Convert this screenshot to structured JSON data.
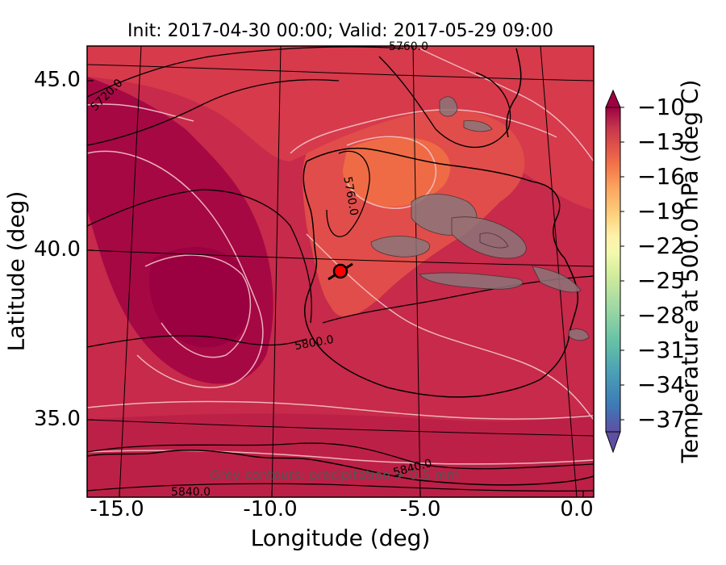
{
  "title": "Init: 2017-04-30 00:00; Valid: 2017-05-29 09:00",
  "axes": {
    "xlabel": "Longitude (deg)",
    "ylabel": "Latitude (deg)",
    "x_ticks": [
      "-15.0",
      "-10.0",
      "-5.0",
      "0.0"
    ],
    "y_ticks": [
      "45.0",
      "40.0",
      "35.0"
    ],
    "x_range_deg": [
      -15.9,
      0.3
    ],
    "y_range_deg": [
      32.9,
      46.0
    ]
  },
  "colorbar": {
    "label": "Temperature at 500.0 hPa (deg C)",
    "ticks": [
      "−10",
      "−13",
      "−16",
      "−19",
      "−22",
      "−25",
      "−28",
      "−31",
      "−34",
      "−37"
    ],
    "range": [
      -38.5,
      -8.5
    ],
    "extend": "both",
    "colormap": "Spectral_r",
    "colors": [
      "#5e4fa2",
      "#3d79b6",
      "#4a9eb6",
      "#66c2a5",
      "#9dd7a4",
      "#d0ec9b",
      "#f2f9ad",
      "#fef2aa",
      "#fdd07e",
      "#fba65f",
      "#f3754a",
      "#e0524a",
      "#c3344d",
      "#9e0142"
    ]
  },
  "annotations": {
    "note": "Grey contours: precipitation > 0.5 mm",
    "contour_labels": [
      "5760.0",
      "5720.0",
      "5760.0",
      "5800.0",
      "5840.0",
      "5840.0"
    ]
  },
  "marker": {
    "name": "location marker",
    "color": "#ff0000"
  }
}
